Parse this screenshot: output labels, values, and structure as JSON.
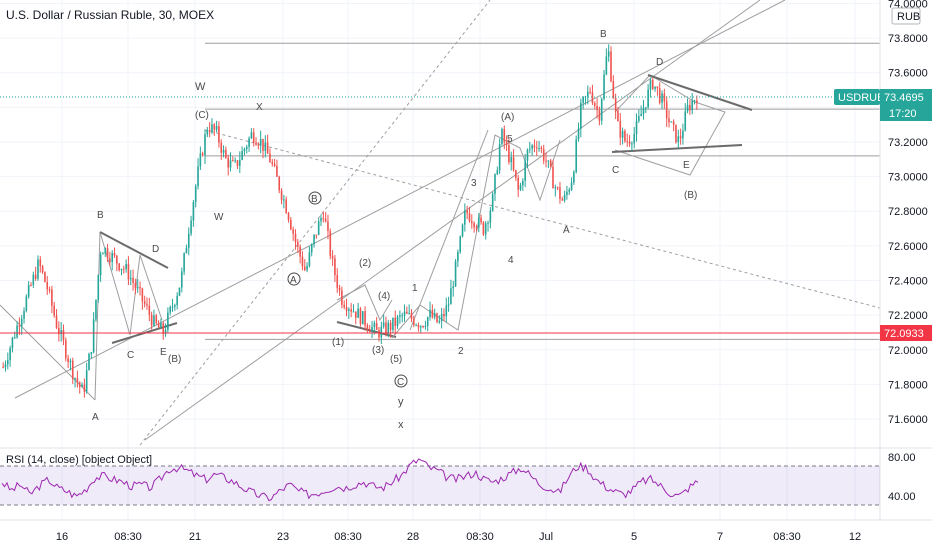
{
  "header": {
    "title": "U.S. Dollar / Russian Ruble, 30, MOEX",
    "currency": "RUB"
  },
  "price_badge": {
    "symbol": "USDRUB",
    "price": "73.4695",
    "countdown": "17:20"
  },
  "level_badge": {
    "value": "72.0933"
  },
  "rsi": {
    "title": "RSI (14, close) [object Object]",
    "levels": [
      "80.00",
      "40.00"
    ]
  },
  "colors": {
    "up": "#26a69a",
    "down": "#ef5350",
    "rsi_line": "#9c27b0",
    "rsi_band": "#7e57c2",
    "level_red": "#f23645",
    "drawing": "#9e9e9e"
  },
  "chart_data": {
    "type": "candlestick",
    "y_ticks": [
      "74.0000",
      "73.8000",
      "73.6000",
      "73.4000",
      "73.2000",
      "73.0000",
      "72.8000",
      "72.6000",
      "72.4000",
      "72.2000",
      "72.0000",
      "71.8000",
      "71.6000"
    ],
    "ylim": [
      71.45,
      74.02
    ],
    "x_ticks": [
      "16",
      "08:30",
      "21",
      "23",
      "08:30",
      "28",
      "08:30",
      "Jul",
      "5",
      "7",
      "08:30",
      "12"
    ],
    "price_line": 73.4695,
    "support_level": 72.0933,
    "horizontal_levels": [
      73.77,
      73.39,
      73.12,
      72.06
    ],
    "close_path": [
      71.9,
      72.05,
      72.2,
      72.35,
      72.5,
      72.35,
      72.15,
      72.0,
      71.85,
      71.75,
      72.05,
      72.6,
      72.55,
      72.5,
      72.45,
      72.35,
      72.25,
      72.15,
      72.1,
      72.25,
      72.4,
      72.75,
      73.05,
      73.3,
      73.25,
      73.1,
      73.05,
      73.15,
      73.25,
      73.2,
      73.1,
      72.95,
      72.8,
      72.6,
      72.45,
      72.65,
      72.8,
      72.5,
      72.3,
      72.25,
      72.2,
      72.15,
      72.1,
      72.12,
      72.15,
      72.2,
      72.18,
      72.15,
      72.2,
      72.15,
      72.25,
      72.5,
      72.8,
      72.75,
      72.7,
      72.85,
      73.25,
      73.1,
      72.9,
      73.15,
      73.2,
      73.1,
      72.95,
      72.85,
      73.0,
      73.4,
      73.5,
      73.35,
      73.75,
      73.3,
      73.2,
      73.25,
      73.4,
      73.55,
      73.45,
      73.3,
      73.2,
      73.4,
      73.47
    ],
    "rsi_values": [
      55,
      45,
      52,
      40,
      50,
      58,
      48,
      44,
      38,
      46,
      60,
      62,
      58,
      55,
      50,
      52,
      48,
      58,
      70,
      72,
      68,
      62,
      58,
      64,
      60,
      55,
      48,
      42,
      38,
      36,
      45,
      52,
      44,
      40,
      42,
      46,
      50,
      48,
      52,
      55,
      50,
      48,
      55,
      62,
      75,
      82,
      72,
      68,
      60,
      58,
      62,
      66,
      58,
      55,
      60,
      66,
      72,
      62,
      52,
      48,
      42,
      60,
      74,
      72,
      58,
      50,
      44,
      40,
      46,
      56,
      58,
      50,
      42,
      38,
      48,
      56
    ]
  },
  "waves": {
    "W": "W",
    "C_paren": "(C)",
    "X": "X",
    "W2": "W",
    "B": "B",
    "D": "D",
    "C": "C",
    "E": "E",
    "B_paren": "(B)",
    "A": "A",
    "A_circ": "A",
    "B_circ": "B",
    "C_circ": "C",
    "p2": "(2)",
    "p4": "(4)",
    "p1": "(1)",
    "p3": "(3)",
    "p5": "(5)",
    "n1": "1",
    "n2": "2",
    "n3": "3",
    "n4": "4",
    "n5": "5",
    "A_paren": "(A)",
    "y": "y",
    "x": "x",
    "B_top": "B",
    "D_top": "D",
    "C_right": "C",
    "E_right": "E",
    "B_paren_right": "(B)",
    "A_right": "A"
  }
}
